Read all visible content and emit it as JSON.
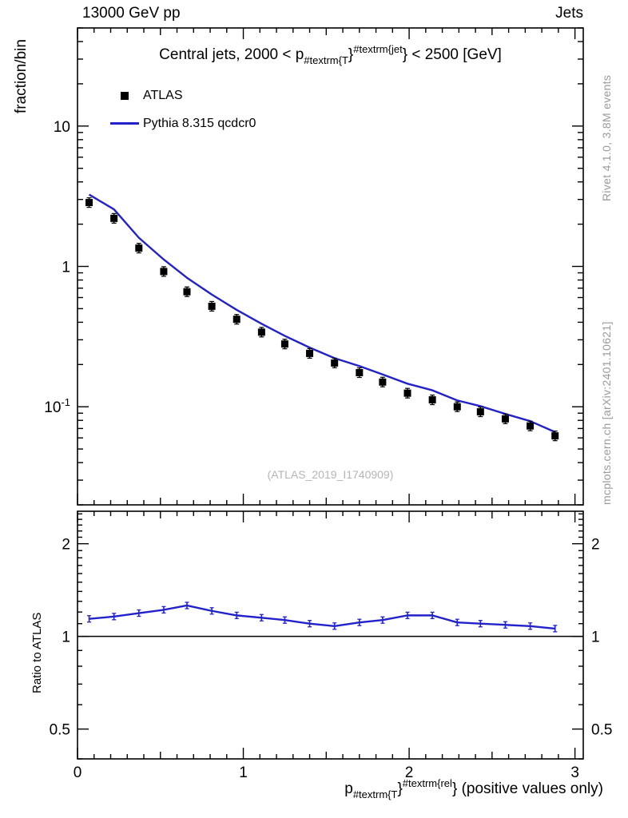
{
  "header": {
    "left": "13000 GeV pp",
    "right": "Jets"
  },
  "main_panel": {
    "y_axis_title": "fraction/bin",
    "title": {
      "prefix": "Central jets, 2000 < p",
      "sub": "#textrm{T",
      "brace1": "}",
      "sup": "#textrm{jet",
      "brace2": "}",
      "suffix": " < 2500 [GeV]"
    },
    "legend": [
      {
        "label": "ATLAS",
        "marker": "black-square"
      },
      {
        "label": "Pythia 8.315 qcdcr0",
        "marker": "blue-line"
      }
    ],
    "watermark": "(ATLAS_2019_I1740909)"
  },
  "ratio_panel": {
    "y_axis_title": "Ratio to ATLAS"
  },
  "x_axis_title": {
    "prefix": "p",
    "sub": "#textrm{T",
    "brace1": "}",
    "sup": "#textrm{rel",
    "brace2": "}",
    "suffix": " (positive values only)"
  },
  "side_notes": {
    "top_right": "Rivet 4.1.0,  3.8M events",
    "bottom_right": "mcplots.cern.ch [arXiv:2401.10621]"
  },
  "colors": {
    "mc_line": "#2222cc",
    "data_marker": "#000000",
    "credit_gray": "#9a9a9a",
    "watermark_gray": "#b5b5b5"
  },
  "chart_data": [
    {
      "type": "line",
      "panel": "main",
      "title": "Central jets, 2000 < pT^jet < 2500 [GeV]",
      "x_range": [
        0,
        3.05
      ],
      "y_range": [
        0.02,
        50
      ],
      "y_scale": "log",
      "x_ticks": [
        {
          "value": 0,
          "label": "0"
        },
        {
          "value": 1,
          "label": "1"
        },
        {
          "value": 2,
          "label": "2"
        },
        {
          "value": 3,
          "label": "3"
        }
      ],
      "y_ticks": [
        {
          "value": 10,
          "label": "10"
        },
        {
          "value": 1,
          "label": "1"
        },
        {
          "value": 0.1,
          "label": "10",
          "exp": "-1"
        }
      ],
      "x": [
        0.07,
        0.22,
        0.37,
        0.52,
        0.66,
        0.81,
        0.96,
        1.11,
        1.25,
        1.4,
        1.55,
        1.7,
        1.84,
        1.99,
        2.14,
        2.29,
        2.43,
        2.58,
        2.73,
        2.88
      ],
      "series": [
        {
          "name": "ATLAS",
          "style": "black-squares",
          "values": [
            2.85,
            2.2,
            1.35,
            0.92,
            0.66,
            0.52,
            0.42,
            0.34,
            0.28,
            0.24,
            0.205,
            0.175,
            0.15,
            0.125,
            0.112,
            0.1,
            0.092,
            0.082,
            0.073,
            0.062
          ]
        },
        {
          "name": "Pythia 8.315 qcdcr0",
          "style": "blue-line",
          "values": [
            3.25,
            2.55,
            1.6,
            1.12,
            0.83,
            0.63,
            0.49,
            0.39,
            0.32,
            0.264,
            0.222,
            0.195,
            0.17,
            0.146,
            0.131,
            0.111,
            0.101,
            0.089,
            0.079,
            0.066
          ]
        }
      ]
    },
    {
      "type": "line",
      "panel": "ratio",
      "ylabel": "Ratio to ATLAS",
      "y_range": [
        0.4,
        2.55
      ],
      "y_scale": "log",
      "reference_line": 1,
      "y_ticks": [
        {
          "value": 0.5,
          "label": "0.5"
        },
        {
          "value": 1,
          "label": "1"
        },
        {
          "value": 2,
          "label": "2"
        }
      ],
      "x": [
        0.07,
        0.22,
        0.37,
        0.52,
        0.66,
        0.81,
        0.96,
        1.11,
        1.25,
        1.4,
        1.55,
        1.7,
        1.84,
        1.99,
        2.14,
        2.29,
        2.43,
        2.58,
        2.73,
        2.88
      ],
      "values": [
        1.14,
        1.16,
        1.19,
        1.22,
        1.26,
        1.21,
        1.17,
        1.15,
        1.13,
        1.1,
        1.08,
        1.11,
        1.13,
        1.17,
        1.17,
        1.11,
        1.1,
        1.09,
        1.08,
        1.06
      ]
    }
  ]
}
